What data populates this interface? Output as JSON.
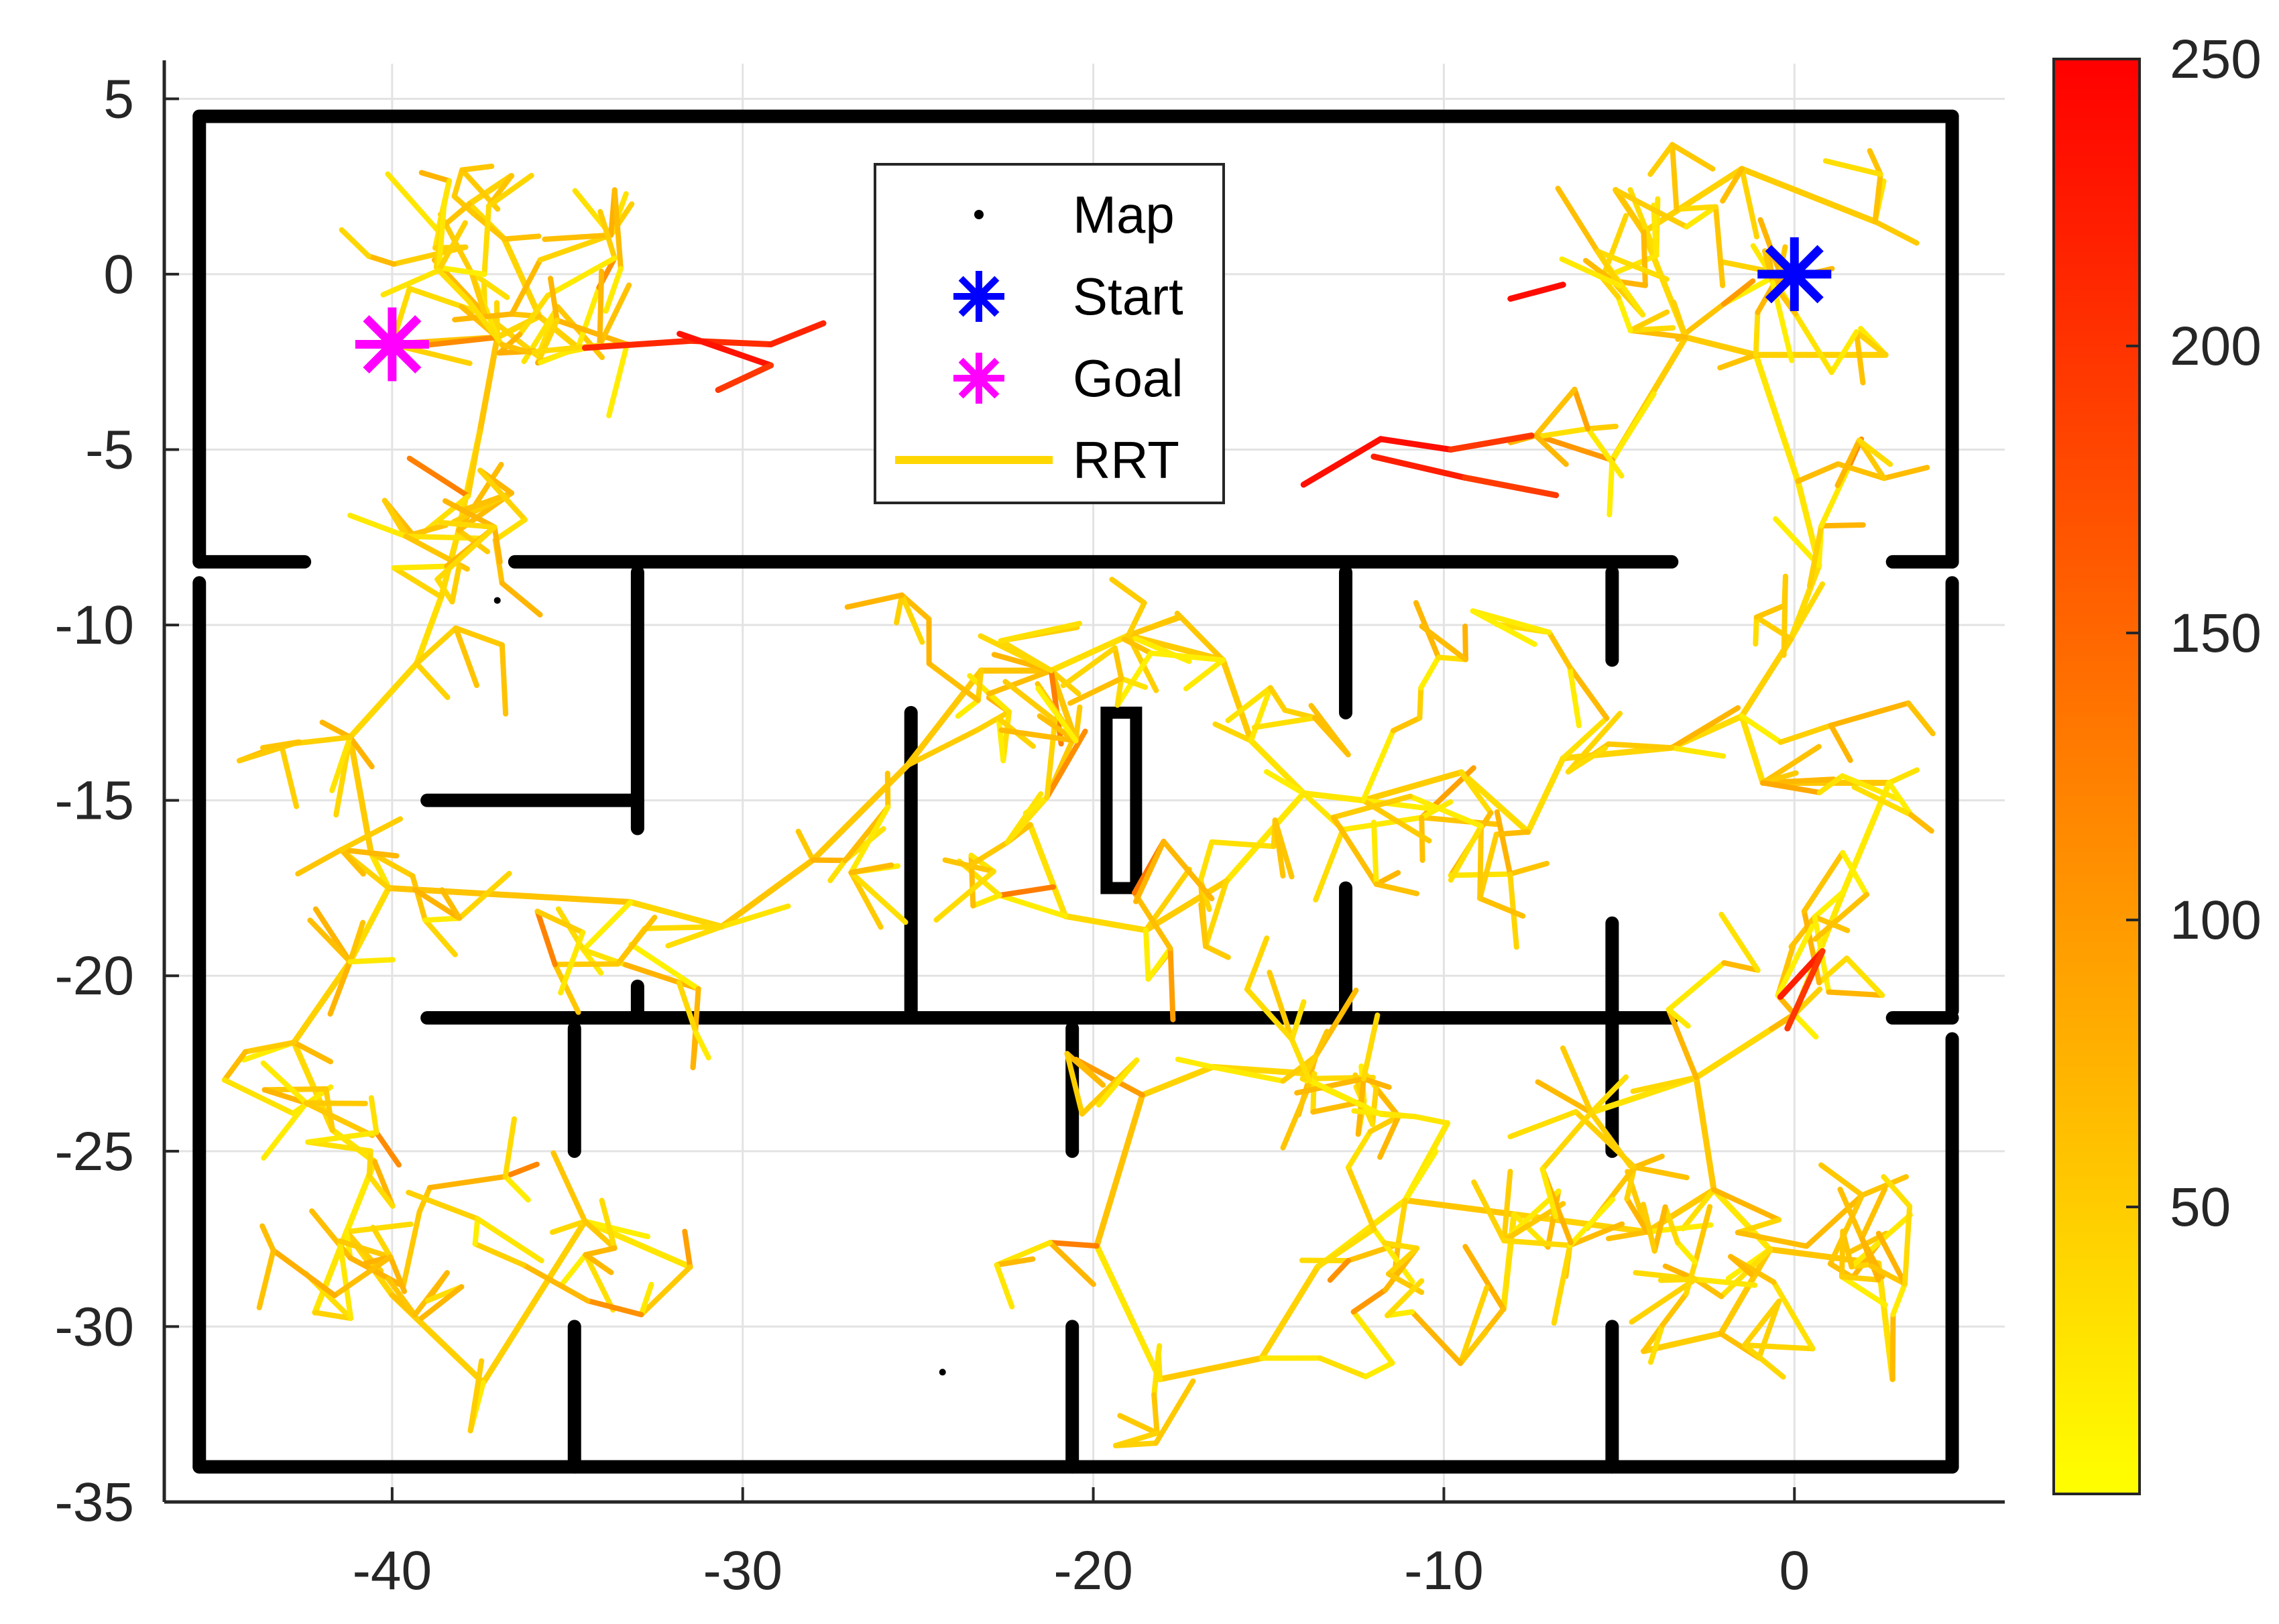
{
  "chart_data": {
    "type": "scatter",
    "title": "",
    "xlabel": "",
    "ylabel": "",
    "xlim": [
      -46.5,
      6
    ],
    "ylim": [
      -35,
      6
    ],
    "xticks": [
      -40,
      -30,
      -20,
      -10,
      0
    ],
    "yticks": [
      5,
      0,
      -5,
      -10,
      -15,
      -20,
      -25,
      -30,
      -35
    ],
    "grid": true,
    "legend_position": "top-center",
    "series": [
      {
        "name": "Map",
        "marker": "dot",
        "color": "#000000",
        "kind": "points"
      },
      {
        "name": "Start",
        "marker": "asterisk",
        "color": "#0000ff",
        "points": [
          [
            0,
            0
          ]
        ]
      },
      {
        "name": "Goal",
        "marker": "asterisk",
        "color": "#ff00ff",
        "points": [
          [
            -40,
            -2
          ]
        ]
      },
      {
        "name": "RRT",
        "marker": "line",
        "color": "#ffd700",
        "kind": "tree-edges"
      }
    ],
    "walls": [
      [
        [
          -45.5,
          4.5
        ],
        [
          4.5,
          4.5
        ]
      ],
      [
        [
          -45.5,
          4.5
        ],
        [
          -45.5,
          -8.2
        ]
      ],
      [
        [
          -45.5,
          -8.2
        ],
        [
          -42.5,
          -8.2
        ]
      ],
      [
        [
          4.5,
          4.5
        ],
        [
          4.5,
          -8.2
        ]
      ],
      [
        [
          4.5,
          -8.2
        ],
        [
          2.8,
          -8.2
        ]
      ],
      [
        [
          -45.5,
          -8.8
        ],
        [
          -45.5,
          -34
        ]
      ],
      [
        [
          4.5,
          -8.8
        ],
        [
          4.5,
          -21
        ]
      ],
      [
        [
          4.5,
          -21.2
        ],
        [
          2.8,
          -21.2
        ]
      ],
      [
        [
          4.5,
          -21.8
        ],
        [
          4.5,
          -34
        ]
      ],
      [
        [
          -45.5,
          -34
        ],
        [
          4.5,
          -34
        ]
      ],
      [
        [
          -36.5,
          -8.2
        ],
        [
          -3.5,
          -8.2
        ]
      ],
      [
        [
          -33,
          -8.5
        ],
        [
          -33,
          -15.8
        ]
      ],
      [
        [
          -39,
          -15
        ],
        [
          -33,
          -15
        ]
      ],
      [
        [
          -39,
          -21.2
        ],
        [
          -3.5,
          -21.2
        ]
      ],
      [
        [
          -33,
          -20.3
        ],
        [
          -33,
          -21.2
        ]
      ],
      [
        [
          -25.2,
          -12.5
        ],
        [
          -25.2,
          -21.2
        ]
      ],
      [
        [
          -12.8,
          -8.5
        ],
        [
          -12.8,
          -12.5
        ]
      ],
      [
        [
          -12.8,
          -17.5
        ],
        [
          -12.8,
          -21.2
        ]
      ],
      [
        [
          -5.2,
          -8.5
        ],
        [
          -5.2,
          -11
        ]
      ],
      [
        [
          -5.2,
          -18.5
        ],
        [
          -5.2,
          -25
        ]
      ],
      [
        [
          -34.8,
          -21.5
        ],
        [
          -34.8,
          -25
        ]
      ],
      [
        [
          -20.6,
          -21.5
        ],
        [
          -20.6,
          -25
        ]
      ],
      [
        [
          -34.8,
          -30
        ],
        [
          -34.8,
          -34
        ]
      ],
      [
        [
          -20.6,
          -30
        ],
        [
          -20.6,
          -34
        ]
      ],
      [
        [
          -5.2,
          -30
        ],
        [
          -5.2,
          -34
        ]
      ]
    ],
    "pillar": [
      -19.2,
      -12.5,
      -17.5
    ],
    "stray_points": [
      [
        -37,
        -9.3
      ],
      [
        -24.3,
        -31.3
      ]
    ],
    "tree_seeds": [
      [
        -40,
        -2
      ],
      [
        0,
        0
      ],
      [
        0,
        -8.5
      ],
      [
        0,
        -20.5
      ],
      [
        -18,
        -24.5
      ],
      [
        -19,
        -10.5
      ],
      [
        -27,
        -11.5
      ]
    ],
    "tree_nodes_approx": [
      [
        -40,
        -2
      ],
      [
        -37,
        -1.8
      ],
      [
        -35.8,
        -1.2
      ],
      [
        -36.8,
        1
      ],
      [
        -37.8,
        2
      ],
      [
        -36.6,
        2.8
      ],
      [
        -34.7,
        -2.1
      ],
      [
        -33.3,
        -2
      ],
      [
        -37.5,
        -4.5
      ],
      [
        -38.1,
        -7.3
      ],
      [
        -38.6,
        -9.2
      ],
      [
        -39.3,
        -11.1
      ],
      [
        -41.2,
        -13.2
      ],
      [
        -40.6,
        -16.5
      ],
      [
        -40.1,
        -17.5
      ],
      [
        -41.2,
        -19.6
      ],
      [
        -42.8,
        -21.9
      ],
      [
        -41.7,
        -24.4
      ],
      [
        -40.5,
        -25.3
      ],
      [
        -41.3,
        -27.3
      ],
      [
        -42.2,
        -29.6
      ],
      [
        -40,
        -29.1
      ],
      [
        -37.4,
        -31.6
      ],
      [
        -34.5,
        -27
      ],
      [
        -31.5,
        -28.3
      ],
      [
        -33.2,
        -17.9
      ],
      [
        -30.6,
        -18.6
      ],
      [
        -28,
        -16.7
      ],
      [
        -25.3,
        -14
      ],
      [
        -23.2,
        -11.3
      ],
      [
        -21.2,
        -11.3
      ],
      [
        -19,
        -10.3
      ],
      [
        -16.3,
        -11
      ],
      [
        -15.5,
        -13.3
      ],
      [
        -14,
        -14.8
      ],
      [
        -16.2,
        -17.3
      ],
      [
        -18.5,
        -18.7
      ],
      [
        -20.8,
        -18.3
      ],
      [
        -21.8,
        -15.7
      ],
      [
        -20.5,
        -13.3
      ],
      [
        -12.3,
        -15
      ],
      [
        -9.5,
        -14.2
      ],
      [
        -7.6,
        -15.9
      ],
      [
        -6.6,
        -13.8
      ],
      [
        -3.5,
        -13.5
      ],
      [
        -1.5,
        -12.6
      ],
      [
        -0.1,
        -10.4
      ],
      [
        0.7,
        -8.3
      ],
      [
        0.1,
        -5.9
      ],
      [
        -1.1,
        -2.3
      ],
      [
        -3.1,
        -1.8
      ],
      [
        -4.3,
        1.2
      ],
      [
        -5.1,
        2.4
      ],
      [
        -1.5,
        3
      ],
      [
        2.3,
        1.5
      ],
      [
        2.6,
        -2.3
      ],
      [
        -5.2,
        -5.3
      ],
      [
        -0.9,
        -14.5
      ],
      [
        2.7,
        -14.5
      ],
      [
        1.4,
        -17.6
      ],
      [
        0,
        -21.1
      ],
      [
        -2.8,
        -22.9
      ],
      [
        -2.3,
        -26.1
      ],
      [
        -0.7,
        -27.8
      ],
      [
        2.4,
        -28.2
      ],
      [
        2.8,
        -31.5
      ],
      [
        -2.1,
        -30.2
      ],
      [
        -4.2,
        -27.3
      ],
      [
        -8,
        -26.8
      ],
      [
        -11.1,
        -26.4
      ],
      [
        -13.6,
        -28.3
      ],
      [
        -15.2,
        -30.9
      ],
      [
        -18.1,
        -31.5
      ],
      [
        -19.9,
        -27.7
      ],
      [
        -18.6,
        -23.4
      ],
      [
        -16.6,
        -22.6
      ],
      [
        -13.7,
        -22.8
      ],
      [
        -9.9,
        -24.2
      ],
      [
        -8.3,
        -29.5
      ],
      [
        -4.3,
        -30.7
      ],
      [
        -5.8,
        -23.9
      ]
    ],
    "long_edges_hot": [
      [
        [
          -34.5,
          -2.1
        ],
        [
          -31.5,
          -1.9
        ],
        [
          -29.2,
          -2
        ],
        [
          -27.7,
          -1.4
        ]
      ],
      [
        [
          -31.8,
          -1.7
        ],
        [
          -29.2,
          -2.6
        ],
        [
          -30.7,
          -3.3
        ]
      ],
      [
        [
          -14,
          -6
        ],
        [
          -11.8,
          -4.7
        ],
        [
          -9.8,
          -5
        ],
        [
          -7.5,
          -4.6
        ]
      ],
      [
        [
          -12,
          -5.2
        ],
        [
          -9.4,
          -5.8
        ],
        [
          -6.8,
          -6.3
        ]
      ],
      [
        [
          -8.1,
          -0.7
        ],
        [
          -6.6,
          -0.3
        ]
      ],
      [
        [
          -0.4,
          -20.6
        ],
        [
          0.8,
          -19.3
        ],
        [
          -0.2,
          -21.5
        ]
      ]
    ],
    "colorbar": {
      "colormap": "autumn",
      "min": 0,
      "max": 250,
      "ticks": [
        50,
        100,
        150,
        200,
        250
      ]
    }
  }
}
